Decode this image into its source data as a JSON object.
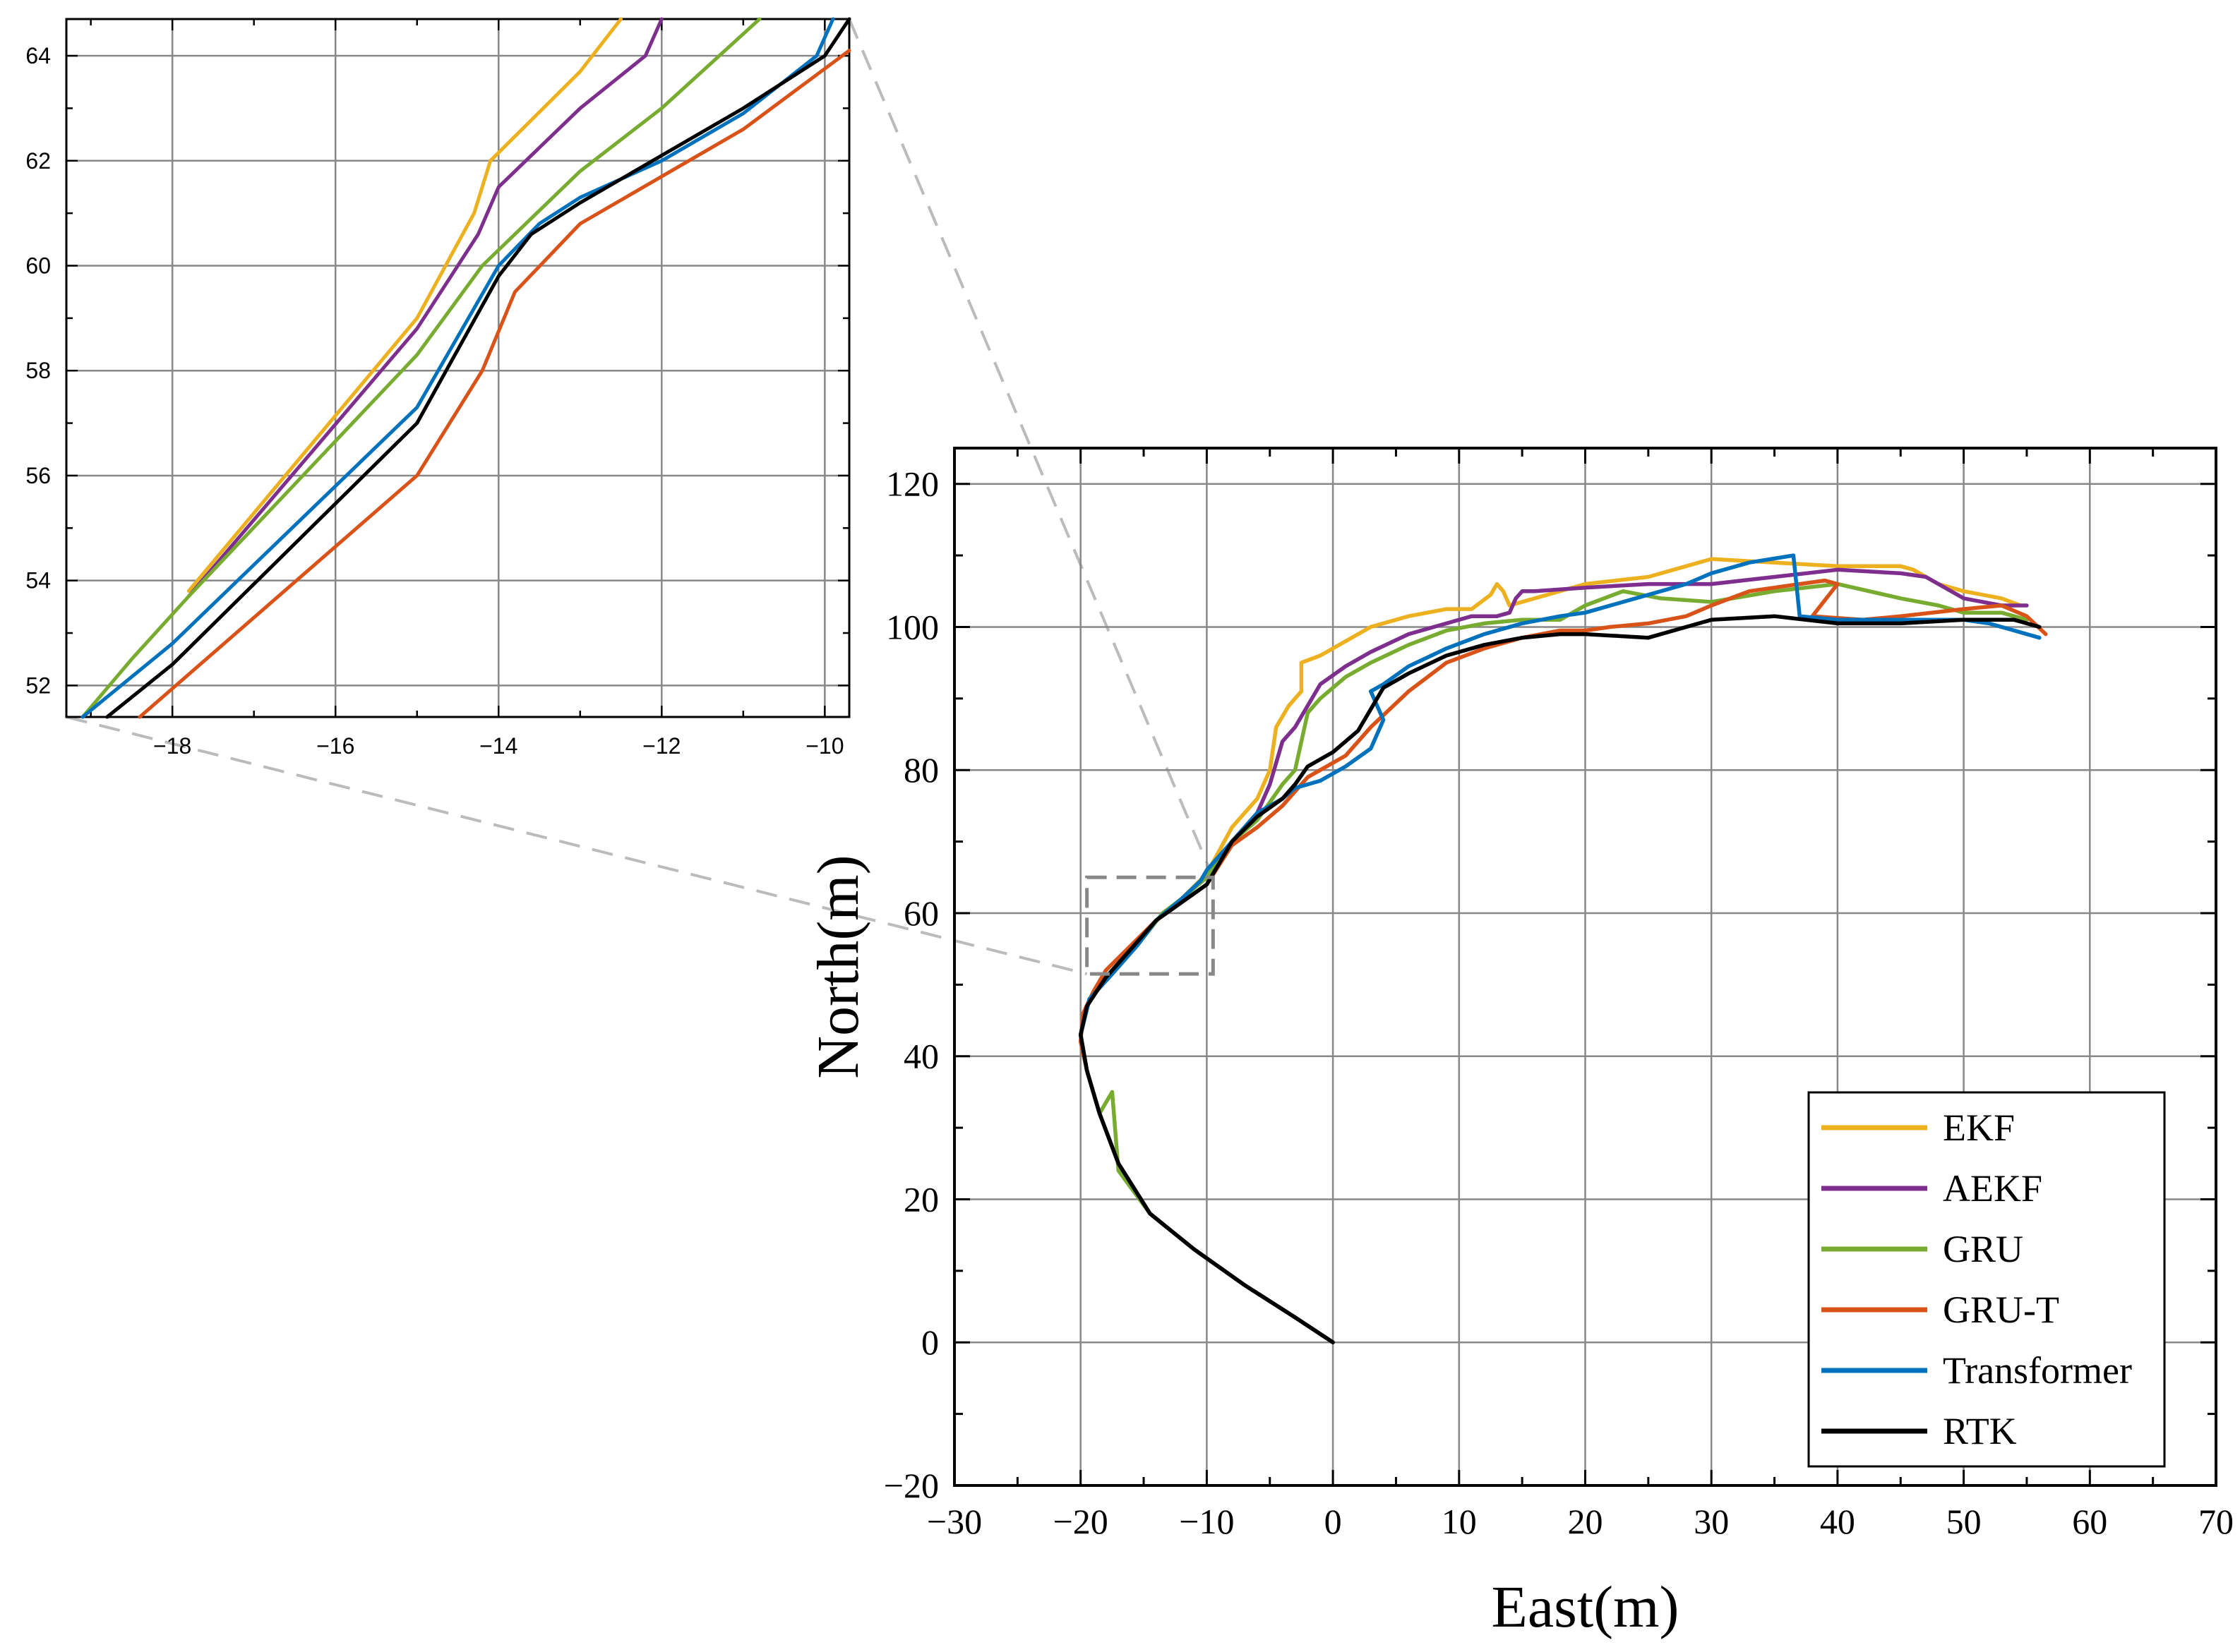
{
  "chart_data": [
    {
      "id": "main",
      "type": "line",
      "title": "",
      "xlabel": "East(m)",
      "ylabel": "North(m)",
      "xlim": [
        -30,
        70
      ],
      "ylim": [
        -20,
        125
      ],
      "xticks": [
        -30,
        -20,
        -10,
        0,
        10,
        20,
        30,
        40,
        50,
        60,
        70
      ],
      "yticks": [
        -20,
        0,
        20,
        40,
        60,
        80,
        100,
        120
      ],
      "grid": true,
      "legend_position": "bottom-right",
      "zoom_box": {
        "x": [
          -19.5,
          -9.5
        ],
        "y": [
          51.5,
          65
        ]
      },
      "series": [
        {
          "name": "EKF",
          "color": "#EDB120",
          "x": [
            0,
            -3,
            -7,
            -11,
            -14.5,
            -17,
            -18.5,
            -19.5,
            -20,
            -19.3,
            -17.5,
            -15.5,
            -14,
            -12,
            -10,
            -8,
            -6,
            -5,
            -4.5,
            -3.5,
            -2.5,
            -2.5,
            -1,
            1,
            3,
            6,
            9,
            11,
            12.5,
            13,
            13.5,
            14,
            16,
            20,
            25,
            28,
            30,
            35,
            40,
            45,
            46,
            48,
            50,
            53,
            54.5
          ],
          "y": [
            0,
            3.5,
            8,
            13,
            18,
            25,
            32,
            38,
            43,
            48,
            51.5,
            55.5,
            59,
            62,
            65.5,
            72,
            76,
            80,
            86,
            89,
            91,
            95,
            96,
            98,
            100,
            101.5,
            102.5,
            102.5,
            104.5,
            106,
            105,
            103,
            104,
            106,
            107,
            108.5,
            109.5,
            109,
            108.5,
            108.5,
            108,
            106,
            105,
            104,
            103
          ]
        },
        {
          "name": "AEKF",
          "color": "#7E2F8E",
          "x": [
            0,
            -3,
            -7,
            -11,
            -14.5,
            -17,
            -18.5,
            -19.5,
            -20,
            -19.3,
            -17.5,
            -15.5,
            -14,
            -12,
            -10,
            -8,
            -6,
            -5,
            -4,
            -3,
            -2,
            -1,
            1,
            3,
            6,
            9,
            11,
            13,
            14,
            14.5,
            15,
            16,
            20,
            25,
            30,
            35,
            40,
            45,
            47,
            50,
            53,
            55
          ],
          "y": [
            0,
            3.5,
            8,
            13,
            18,
            25,
            32,
            38,
            43,
            48,
            51.5,
            55.5,
            59,
            62,
            65,
            70,
            74,
            78,
            84,
            86,
            89,
            92,
            94.5,
            96.5,
            99,
            100.5,
            101.5,
            101.5,
            102,
            104,
            105,
            105,
            105.5,
            106,
            106,
            107,
            108,
            107.5,
            107,
            104,
            103,
            103
          ]
        },
        {
          "name": "GRU",
          "color": "#77AC30",
          "x": [
            0,
            -3,
            -7,
            -11,
            -14.5,
            -17,
            -17.5,
            -18.5,
            -19.5,
            -20,
            -19.3,
            -17.5,
            -15.5,
            -13.5,
            -12,
            -10,
            -8,
            -6,
            -4,
            -3,
            -2,
            -1,
            1,
            3,
            6,
            9,
            12,
            15,
            18,
            20,
            23,
            26,
            30,
            35,
            40,
            45,
            48,
            50,
            53,
            55
          ],
          "y": [
            0,
            3.5,
            8,
            13,
            18,
            24,
            35,
            32,
            38,
            43,
            48,
            51.5,
            55.5,
            60,
            62,
            65,
            70,
            73,
            78,
            80,
            88,
            90,
            93,
            95,
            97.5,
            99.5,
            100.5,
            101,
            101,
            103,
            105,
            104,
            103.5,
            105,
            106,
            104,
            103,
            102,
            102,
            101
          ]
        },
        {
          "name": "GRU-T",
          "color": "#D95319",
          "x": [
            0,
            -3,
            -7,
            -11,
            -14.5,
            -17,
            -18.5,
            -19.5,
            -20,
            -19.8,
            -19,
            -18,
            -16,
            -14,
            -12,
            -10,
            -8,
            -6,
            -4,
            -3,
            -2,
            -1,
            1,
            3,
            6,
            9,
            12,
            15,
            18,
            20,
            22,
            25,
            28,
            30,
            33,
            37,
            39,
            40,
            38,
            42,
            45,
            50,
            53,
            55,
            56.5
          ],
          "y": [
            0,
            3.5,
            8,
            13,
            18,
            25,
            32,
            38,
            42,
            46,
            49,
            52,
            55.5,
            59,
            61.5,
            64,
            69.5,
            72,
            75,
            77,
            79,
            80,
            82,
            86,
            91,
            95,
            97,
            98.5,
            99.5,
            99.5,
            100,
            100.5,
            101.5,
            103,
            105,
            106,
            106.5,
            106,
            101.5,
            101,
            101.5,
            102.5,
            103,
            101.5,
            99
          ]
        },
        {
          "name": "Transformer",
          "color": "#0072BD",
          "x": [
            0,
            -3,
            -7,
            -11,
            -14.5,
            -17,
            -18.5,
            -19.5,
            -20,
            -19.3,
            -17.5,
            -15.5,
            -14,
            -12,
            -10.5,
            -10,
            -8,
            -6,
            -4,
            -3,
            -2,
            -1,
            1,
            3,
            4,
            3,
            4,
            6,
            9,
            12,
            15,
            18,
            20,
            24,
            28,
            30,
            33,
            36.5,
            37,
            40,
            45,
            50,
            52,
            54,
            56
          ],
          "y": [
            0,
            3.5,
            8,
            13,
            18,
            25,
            32,
            38,
            43,
            48,
            51.5,
            55.5,
            59,
            62,
            64.5,
            66,
            70,
            74,
            76,
            77.5,
            78,
            78.5,
            80.5,
            83,
            87,
            91,
            92,
            94.5,
            97,
            99,
            100.5,
            101.5,
            102,
            104,
            106,
            107.5,
            109,
            110,
            101.5,
            101,
            101,
            101,
            100.5,
            99.5,
            98.5
          ]
        },
        {
          "name": "RTK",
          "color": "#000000",
          "x": [
            0,
            -3,
            -7,
            -11,
            -14.5,
            -17,
            -18.5,
            -19.5,
            -20,
            -19.5,
            -18,
            -16,
            -14,
            -12,
            -10,
            -8,
            -6,
            -4,
            -3,
            -2,
            -1,
            0,
            1,
            2,
            3,
            3.5,
            4,
            6,
            9,
            12,
            15,
            18,
            20,
            25,
            30,
            35,
            40,
            45,
            50,
            54,
            56
          ],
          "y": [
            0,
            3.5,
            8,
            13,
            18,
            25,
            32,
            38,
            43,
            47,
            51,
            55,
            59,
            61.5,
            64,
            70,
            73.5,
            76,
            78,
            80.5,
            81.5,
            82.5,
            84,
            85.5,
            88.5,
            90,
            91.5,
            93.5,
            96,
            97.5,
            98.5,
            99,
            99,
            98.5,
            101,
            101.5,
            100.5,
            100.5,
            101,
            101,
            100
          ]
        }
      ]
    },
    {
      "id": "inset",
      "type": "line",
      "title": "",
      "xlabel": "",
      "ylabel": "",
      "xlim": [
        -19.3,
        -9.7
      ],
      "ylim": [
        51.4,
        64.7
      ],
      "xticks": [
        -18,
        -16,
        -14,
        -12,
        -10
      ],
      "yticks": [
        52,
        54,
        56,
        58,
        60,
        62,
        64
      ],
      "grid": true,
      "series": [
        {
          "name": "EKF",
          "color": "#EDB120",
          "x": [
            -17.8,
            -15,
            -14.3,
            -14.1,
            -13,
            -12.5
          ],
          "y": [
            53.8,
            59,
            61,
            62,
            63.7,
            64.7
          ]
        },
        {
          "name": "AEKF",
          "color": "#7E2F8E",
          "x": [
            -17.8,
            -15,
            -14.25,
            -14,
            -13,
            -12.2,
            -12
          ],
          "y": [
            53.7,
            58.8,
            60.6,
            61.5,
            63,
            64,
            64.7
          ]
        },
        {
          "name": "GRU",
          "color": "#77AC30",
          "x": [
            -19.1,
            -18.5,
            -17.8,
            -15,
            -14.2,
            -13,
            -12,
            -10.8
          ],
          "y": [
            51.4,
            52.5,
            53.7,
            58.3,
            60,
            61.8,
            63,
            64.7
          ]
        },
        {
          "name": "GRU-T",
          "color": "#D95319",
          "x": [
            -18.4,
            -15,
            -14.2,
            -13.8,
            -13,
            -12,
            -11,
            -9.7
          ],
          "y": [
            51.4,
            56,
            58,
            59.5,
            60.8,
            61.7,
            62.6,
            64.1
          ]
        },
        {
          "name": "Transformer",
          "color": "#0072BD",
          "x": [
            -19.1,
            -18,
            -15,
            -14,
            -13.5,
            -13,
            -12,
            -11,
            -10.1,
            -9.9
          ],
          "y": [
            51.4,
            52.8,
            57.3,
            60,
            60.8,
            61.3,
            62,
            62.9,
            64,
            64.7
          ]
        },
        {
          "name": "RTK",
          "color": "#000000",
          "x": [
            -18.8,
            -18,
            -15,
            -14,
            -13.6,
            -13,
            -12,
            -11,
            -10,
            -9.7
          ],
          "y": [
            51.4,
            52.4,
            57,
            59.8,
            60.6,
            61.2,
            62.1,
            63,
            64,
            64.7
          ]
        }
      ]
    }
  ]
}
